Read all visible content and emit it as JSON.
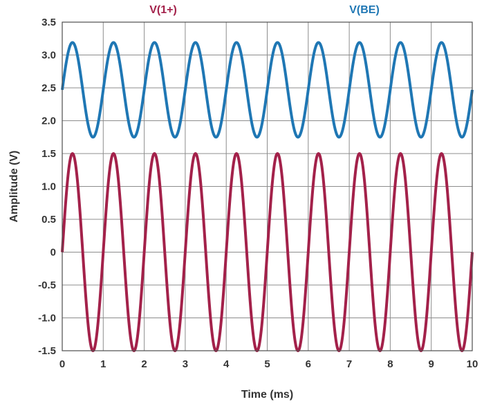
{
  "chart_data": {
    "type": "line",
    "xlabel": "Time (ms)",
    "ylabel": "Amplitude (V)",
    "xlim": [
      0,
      10
    ],
    "ylim": [
      -1.5,
      3.5
    ],
    "x_ticks": [
      "0",
      "1",
      "2",
      "3",
      "4",
      "5",
      "6",
      "7",
      "8",
      "9",
      "10"
    ],
    "y_ticks": [
      "3.5",
      "3.0",
      "2.5",
      "2.0",
      "1.5",
      "1.0",
      "0.5",
      "0",
      "-0.5",
      "-1.0",
      "-1.5"
    ],
    "grid": true,
    "legend": "top",
    "series": [
      {
        "name": "V(1+)",
        "color": "#a3214a",
        "function": "sine",
        "offset_v": 0,
        "amplitude_v": 1.5,
        "frequency_khz": 1,
        "x_start": 0,
        "x_end": 10
      },
      {
        "name": "V(BE)",
        "color": "#1f77b4",
        "function": "sine",
        "offset_v": 2.47,
        "amplitude_v": 0.72,
        "frequency_khz": 1,
        "x_start": 0,
        "x_end": 10
      }
    ]
  }
}
